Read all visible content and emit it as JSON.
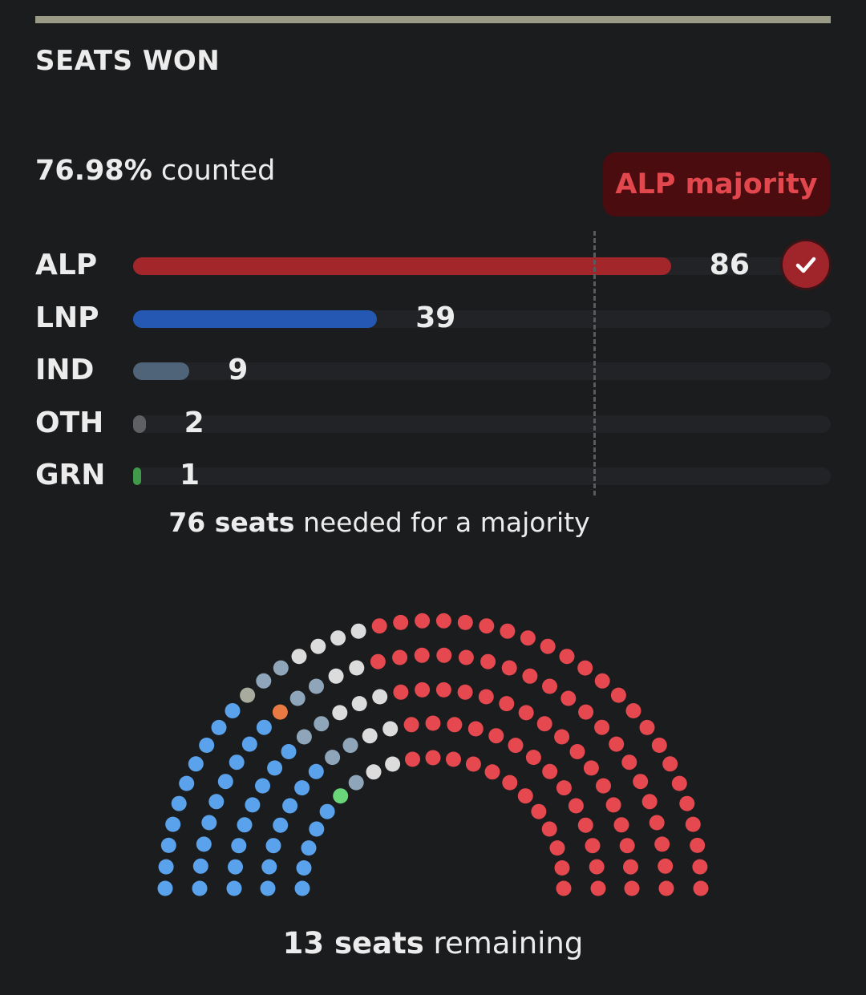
{
  "header": {
    "title": "SEATS WON"
  },
  "status": {
    "counted_value": "76.98%",
    "counted_suffix": " counted"
  },
  "badge": {
    "text": "ALP majority"
  },
  "chart_data": {
    "type": "bar",
    "orientation": "horizontal",
    "categories": [
      "ALP",
      "LNP",
      "IND",
      "OTH",
      "GRN"
    ],
    "values": [
      86,
      39,
      9,
      2,
      1
    ],
    "xlim": [
      0,
      151
    ],
    "majority_threshold": 76,
    "colors": [
      "#a3262b",
      "#2458b3",
      "#4f6478",
      "#5e6064",
      "#3f9a49"
    ],
    "winner": "ALP"
  },
  "majority_note": {
    "count": "76 seats",
    "text": " needed for a majority"
  },
  "hemicycle": {
    "total_seats": 150,
    "seats": [
      {
        "party": "ALP",
        "count": 86,
        "color": "#e5484f"
      },
      {
        "party": "undecided",
        "count": 13,
        "color": "#dcdcdc"
      },
      {
        "party": "IND",
        "count": 9,
        "color": "#8fa6ba"
      },
      {
        "party": "OTH",
        "count": 1,
        "color": "#e97a44"
      },
      {
        "party": "OTH",
        "count": 1,
        "color": "#a8ab9e"
      },
      {
        "party": "GRN",
        "count": 1,
        "color": "#6ad67a"
      },
      {
        "party": "LNP",
        "count": 39,
        "color": "#5aa3ec"
      }
    ]
  },
  "remaining_note": {
    "count": "13 seats",
    "text": " remaining"
  }
}
